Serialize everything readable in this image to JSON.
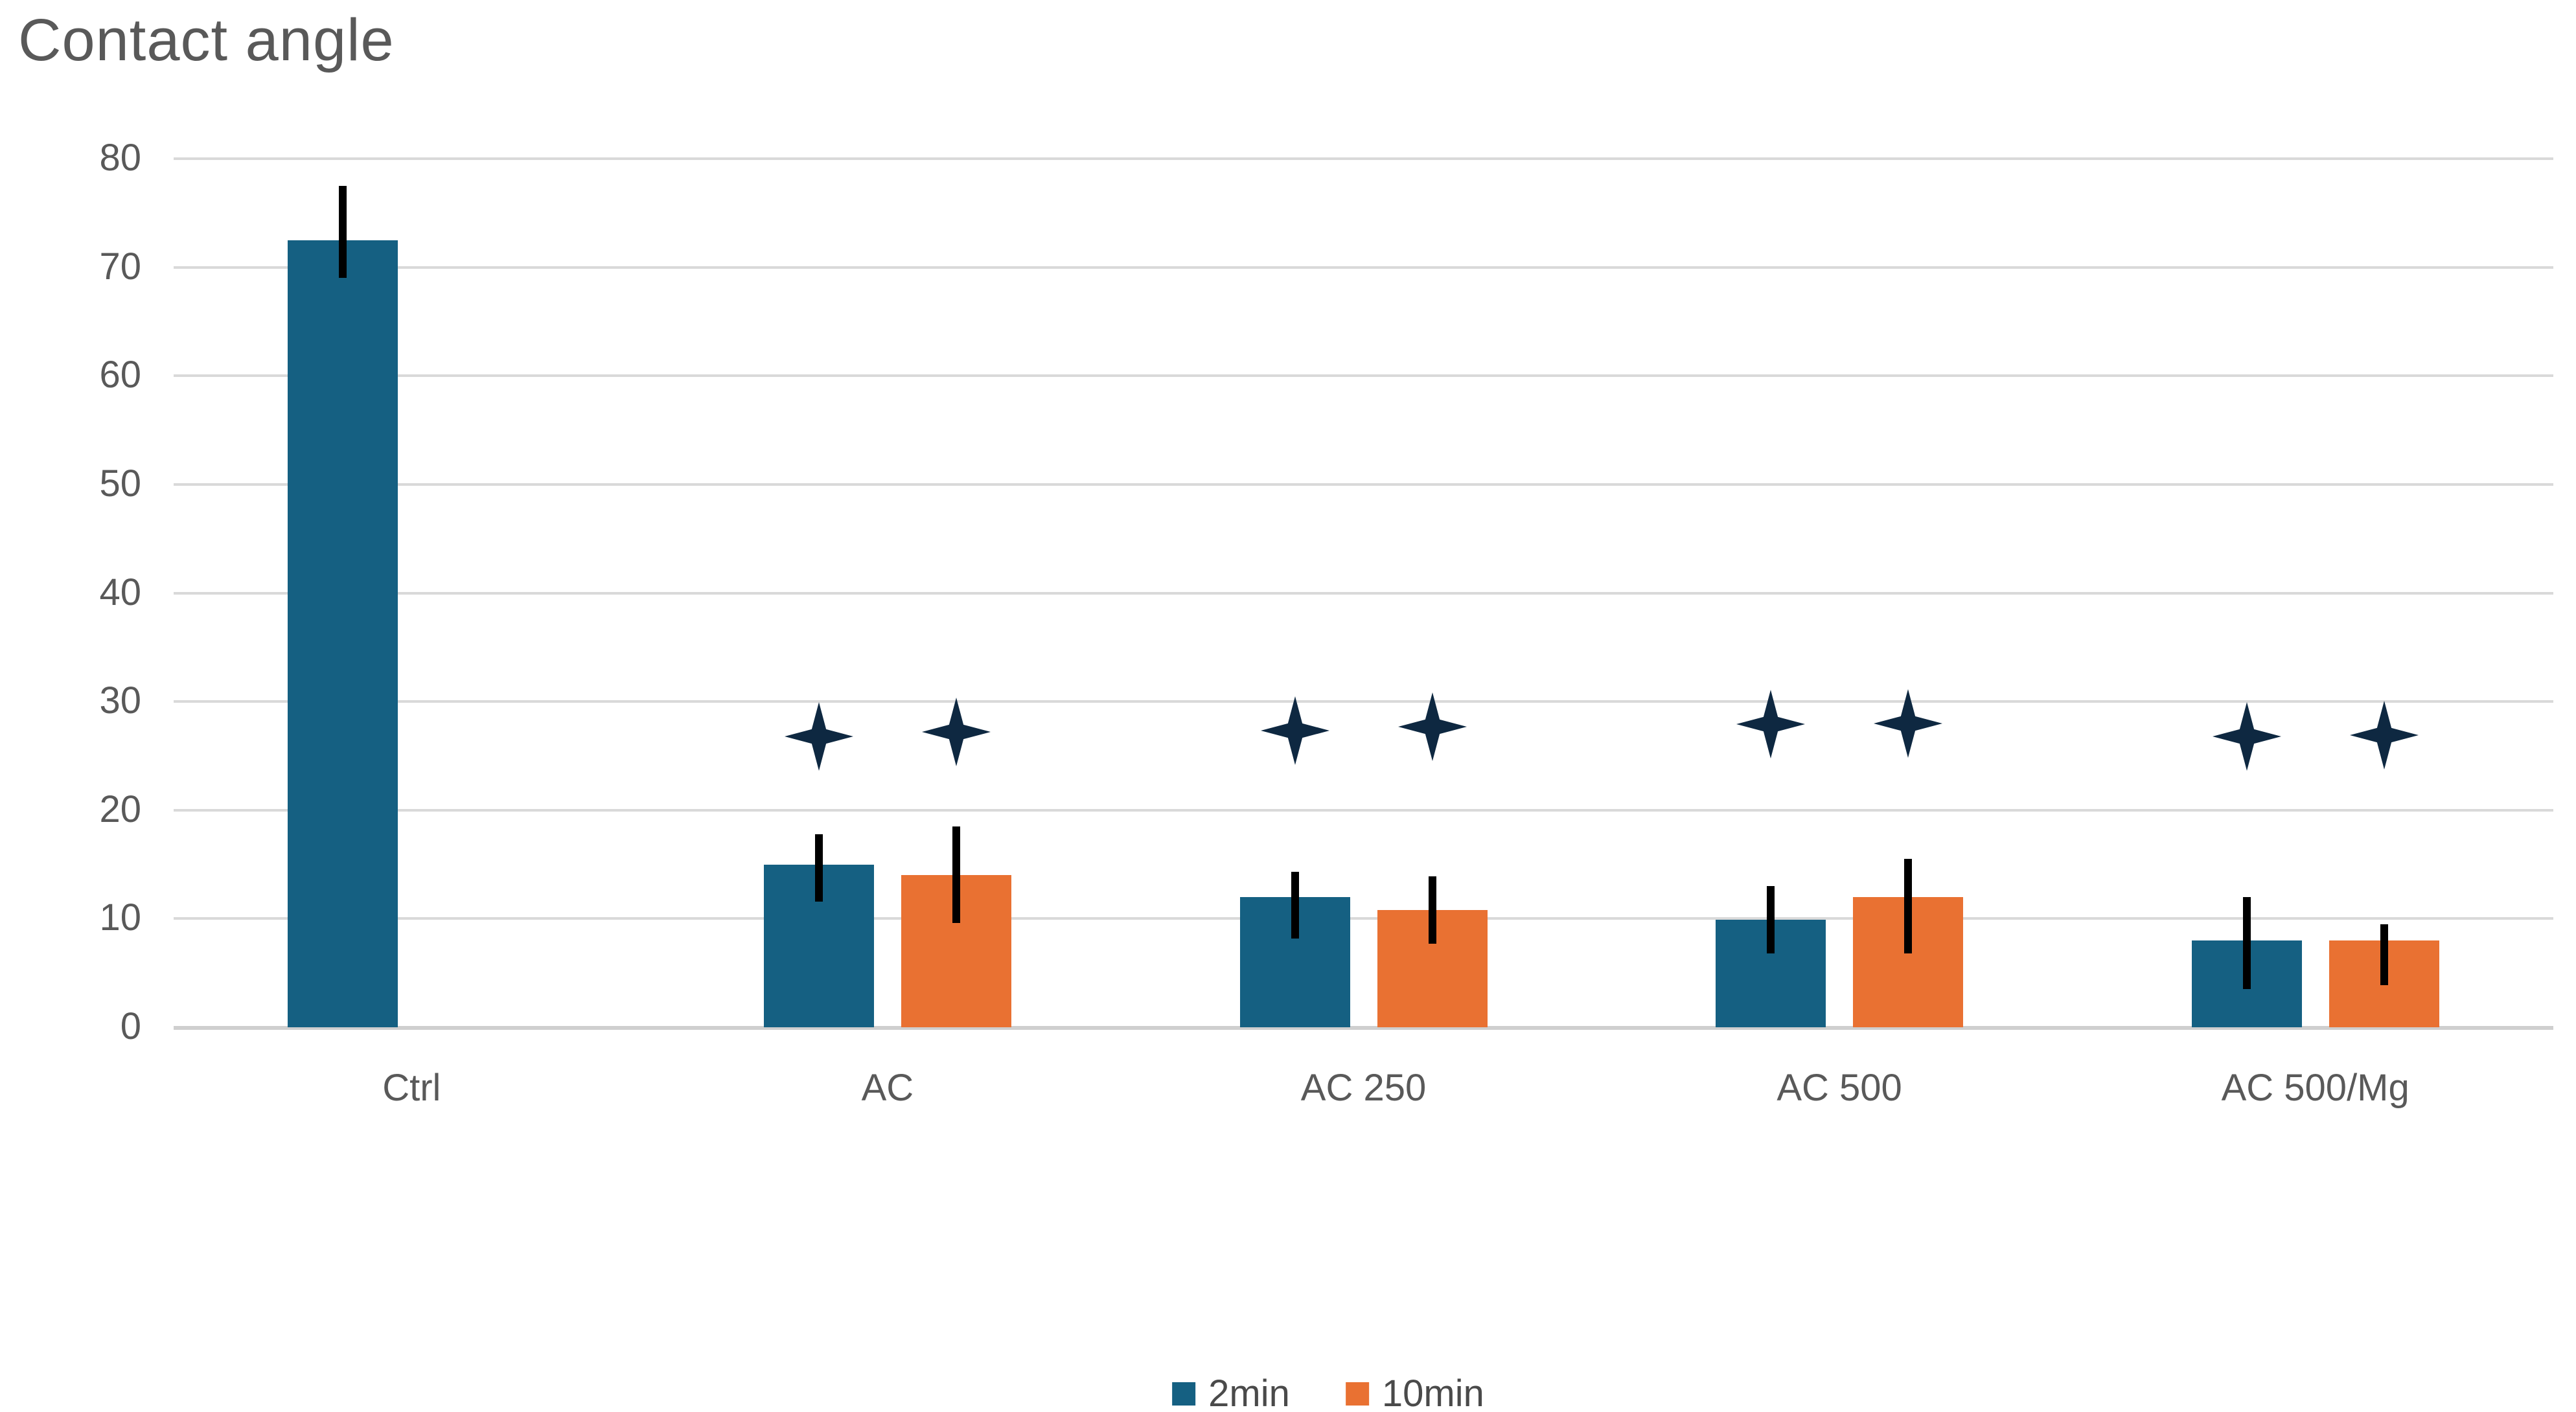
{
  "page": {
    "background": "#ffffff"
  },
  "chart_data": {
    "type": "bar",
    "title": "Contact angle",
    "categories": [
      "Ctrl",
      "AC",
      "AC 250",
      "AC 500",
      "AC 500/Mg"
    ],
    "series": [
      {
        "name": "2min",
        "color": "#156082",
        "values": [
          72.5,
          15,
          12,
          9.9,
          8
        ],
        "error_low": [
          69,
          11.6,
          8.2,
          6.8,
          3.5
        ],
        "error_high": [
          77.5,
          17.8,
          14.3,
          13,
          12
        ],
        "significance_y": [
          null,
          26.8,
          27.3,
          27.9,
          26.8
        ]
      },
      {
        "name": "10min",
        "color": "#E97132",
        "values": [
          null,
          14,
          10.8,
          12,
          8
        ],
        "error_low": [
          null,
          9.6,
          7.7,
          6.8,
          3.9
        ],
        "error_high": [
          null,
          18.5,
          13.9,
          15.5,
          9.5
        ],
        "significance_y": [
          null,
          27.2,
          27.7,
          28,
          26.9
        ]
      }
    ],
    "ylim": [
      0,
      80
    ],
    "yticks": [
      0,
      10,
      20,
      30,
      40,
      50,
      60,
      70,
      80
    ],
    "grid": true,
    "error_bars": true,
    "significance_marker": "four-pointed star",
    "legend_position": "bottom",
    "colors": {
      "grid": "#D9D9D9",
      "axis": "#CFCFCF",
      "text": "#595959",
      "star": "#0E2841",
      "error_bar": "#000000"
    }
  }
}
